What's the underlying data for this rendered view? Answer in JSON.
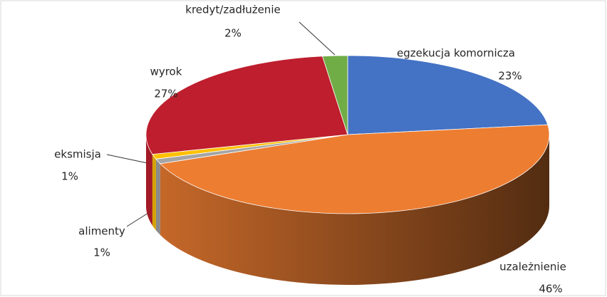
{
  "chart_data": {
    "type": "pie3d",
    "categories": [
      "egzekucja komornicza",
      "uzależnienie",
      "alimenty",
      "eksmisja",
      "wyrok",
      "kredyt/zadłużenie"
    ],
    "values": [
      23,
      46,
      1,
      1,
      27,
      2
    ],
    "value_labels": [
      "23%",
      "46%",
      "1%",
      "1%",
      "27%",
      "2%"
    ],
    "colors": [
      "#4472c4",
      "#ed7d31",
      "#a5a5a5",
      "#ffc000",
      "#be1e2d",
      "#70ad47"
    ]
  }
}
